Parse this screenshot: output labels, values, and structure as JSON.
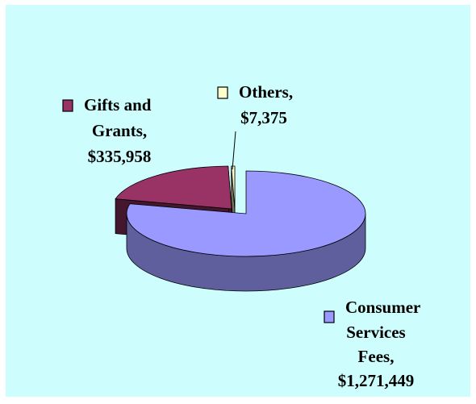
{
  "colors": {
    "background": "#cdfdfd",
    "consumer_services_fees": "#9999ff",
    "gifts_and_grants": "#993366",
    "others": "#ffffcc"
  },
  "chart_data": {
    "type": "pie",
    "style": "3d-exploded",
    "title": "",
    "legend": "inline-labels",
    "slices": [
      {
        "label_lines": [
          "Consumer",
          "Services",
          "Fees,",
          "$1,271,449"
        ],
        "category": "Consumer Services Fees",
        "value": 1271449,
        "color": "#9999ff"
      },
      {
        "label_lines": [
          "Gifts and",
          "Grants,",
          "$335,958"
        ],
        "category": "Gifts and Grants",
        "value": 335958,
        "color": "#993366"
      },
      {
        "label_lines": [
          "Others,",
          "$7,375"
        ],
        "category": "Others",
        "value": 7375,
        "color": "#ffffcc"
      }
    ]
  }
}
